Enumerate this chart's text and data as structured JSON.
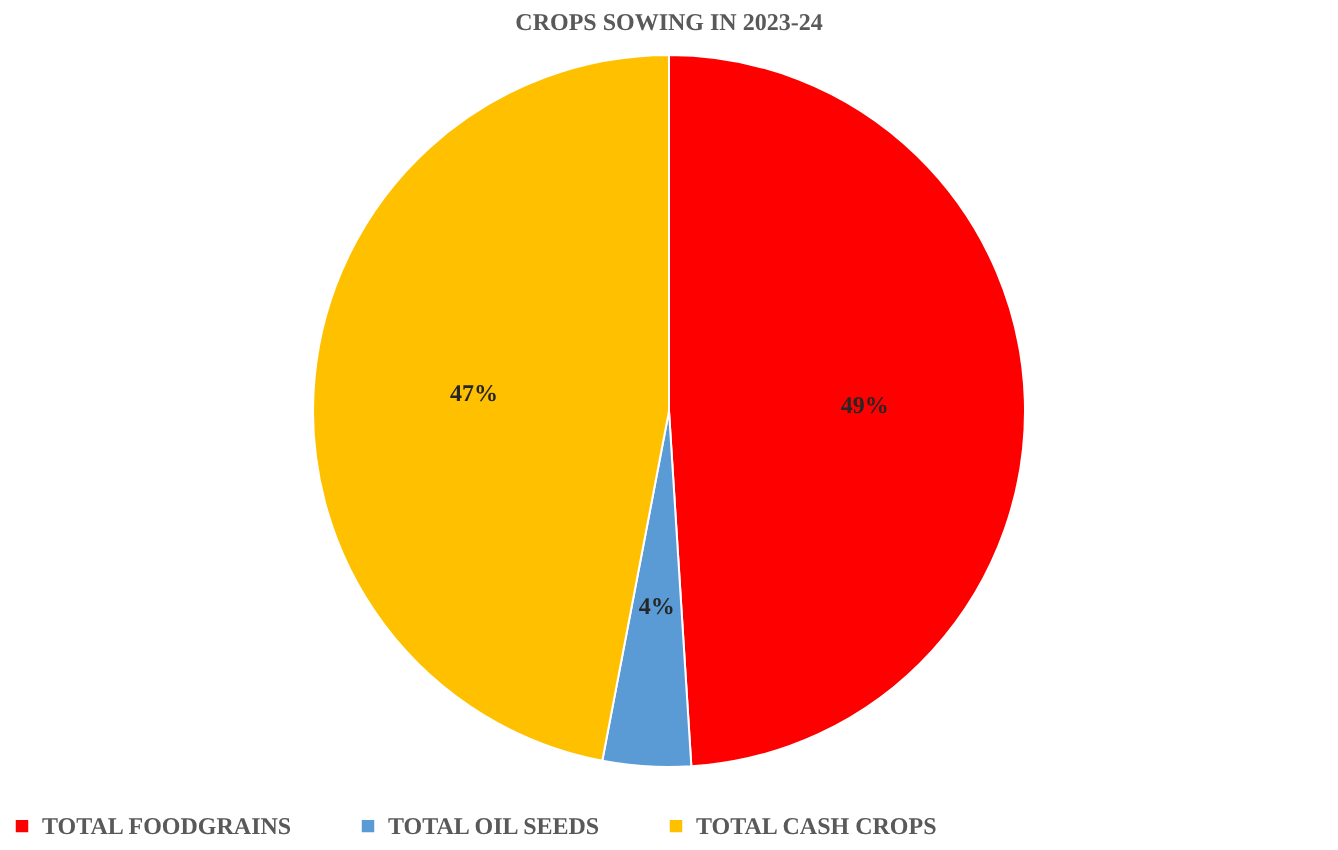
{
  "chart_data": {
    "type": "pie",
    "title": "CROPS SOWING IN 2023-24",
    "categories": [
      "TOTAL FOODGRAINS",
      "TOTAL OIL SEEDS",
      "TOTAL CASH CROPS"
    ],
    "values": [
      49,
      4,
      47
    ],
    "colors": [
      "#ff0000",
      "#5b9bd5",
      "#ffc000"
    ],
    "value_labels": [
      "49%",
      "4%",
      "47%"
    ],
    "legend": "bottom"
  }
}
